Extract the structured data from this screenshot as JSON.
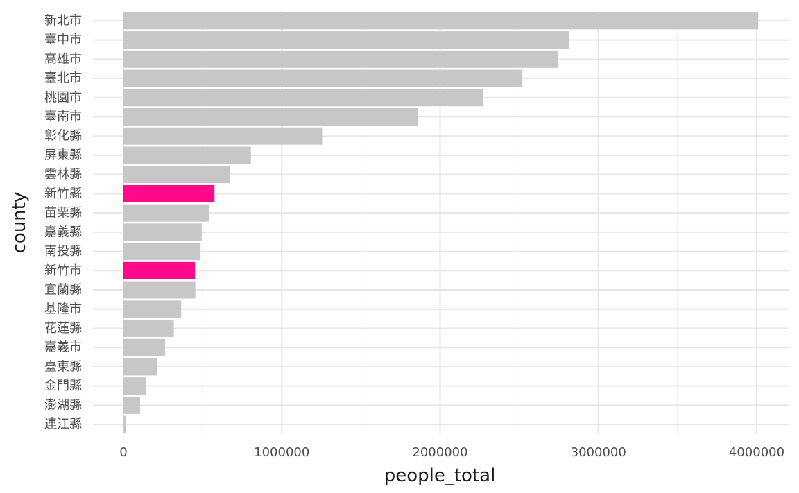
{
  "chart_data": {
    "type": "bar",
    "orientation": "horizontal",
    "xlabel": "people_total",
    "ylabel": "county",
    "xlim": [
      0,
      4200000
    ],
    "x_ticks": [
      "0",
      "1000000",
      "2000000",
      "3000000",
      "4000000"
    ],
    "grid": true,
    "colors": {
      "default": "#c7c7c7",
      "highlight": "#ff0a8a"
    },
    "categories": [
      "新北市",
      "臺中市",
      "高雄市",
      "臺北市",
      "桃園市",
      "臺南市",
      "彰化縣",
      "屏東縣",
      "雲林縣",
      "新竹縣",
      "苗栗縣",
      "嘉義縣",
      "南投縣",
      "新竹市",
      "宜蘭縣",
      "基隆市",
      "花蓮縣",
      "嘉義市",
      "臺東縣",
      "金門縣",
      "澎湖縣",
      "連江縣"
    ],
    "values": [
      4010000,
      2815000,
      2745000,
      2520000,
      2270000,
      1862000,
      1255000,
      805000,
      673000,
      575000,
      543000,
      494000,
      487000,
      452000,
      454000,
      365000,
      318000,
      263000,
      213000,
      140000,
      105000,
      13000
    ],
    "highlighted": [
      "新竹縣",
      "新竹市"
    ]
  }
}
